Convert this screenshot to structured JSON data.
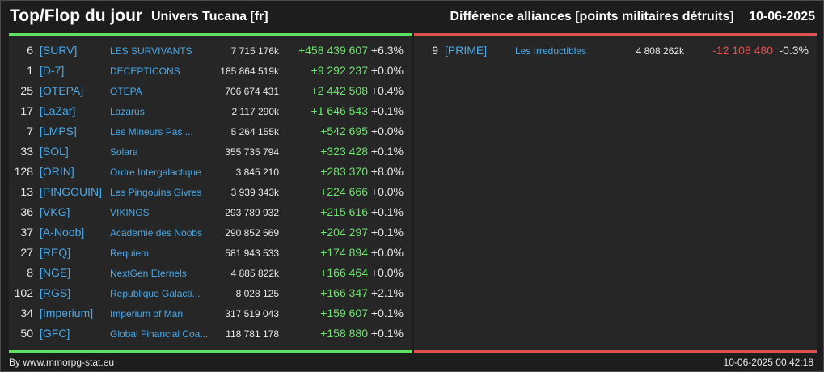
{
  "header": {
    "title": "Top/Flop du jour",
    "subtitle": "Univers Tucana [fr]",
    "right_label": "Différence alliances [points militaires détruits]",
    "date": "10-06-2025"
  },
  "colors": {
    "positive": "#6fe36f",
    "negative": "#e05050",
    "link": "#4aa8e8",
    "top_accent": "#5fe35f",
    "flop_accent": "#e05050"
  },
  "top": [
    {
      "rank": "6",
      "tag": "[SURV]",
      "name": "LES SURVIVANTS",
      "points": "7 715 176k",
      "diff": "+458 439 607",
      "pct": "+6.3%"
    },
    {
      "rank": "1",
      "tag": "[D-7]",
      "name": "DECEPTICONS",
      "points": "185 864 519k",
      "diff": "+9 292 237",
      "pct": "+0.0%"
    },
    {
      "rank": "25",
      "tag": "[OTEPA]",
      "name": "OTEPA",
      "points": "706 674 431",
      "diff": "+2 442 508",
      "pct": "+0.4%"
    },
    {
      "rank": "17",
      "tag": "[LaZar]",
      "name": "Lazarus",
      "points": "2 117 290k",
      "diff": "+1 646 543",
      "pct": "+0.1%"
    },
    {
      "rank": "7",
      "tag": "[LMPS]",
      "name": "Les Mineurs Pas ...",
      "points": "5 264 155k",
      "diff": "+542 695",
      "pct": "+0.0%"
    },
    {
      "rank": "33",
      "tag": "[SOL]",
      "name": "Solara",
      "points": "355 735 794",
      "diff": "+323 428",
      "pct": "+0.1%"
    },
    {
      "rank": "128",
      "tag": "[ORIN]",
      "name": "Ordre Intergalactique",
      "points": "3 845 210",
      "diff": "+283 370",
      "pct": "+8.0%"
    },
    {
      "rank": "13",
      "tag": "[PINGOUIN]",
      "name": "Les Pingouins Givres",
      "points": "3 939 343k",
      "diff": "+224 666",
      "pct": "+0.0%"
    },
    {
      "rank": "36",
      "tag": "[VKG]",
      "name": "VIKINGS",
      "points": "293 789 932",
      "diff": "+215 616",
      "pct": "+0.1%"
    },
    {
      "rank": "37",
      "tag": "[A-Noob]",
      "name": "Academie des Noobs",
      "points": "290 852 569",
      "diff": "+204 297",
      "pct": "+0.1%"
    },
    {
      "rank": "27",
      "tag": "[REQ]",
      "name": "Requiem",
      "points": "581 943 533",
      "diff": "+174 894",
      "pct": "+0.0%"
    },
    {
      "rank": "8",
      "tag": "[NGE]",
      "name": "NextGen Eternels",
      "points": "4 885 822k",
      "diff": "+166 464",
      "pct": "+0.0%"
    },
    {
      "rank": "102",
      "tag": "[RGS]",
      "name": "Republique Galacti...",
      "points": "8 028 125",
      "diff": "+166 347",
      "pct": "+2.1%"
    },
    {
      "rank": "34",
      "tag": "[Imperium]",
      "name": "Imperium of Man",
      "points": "317 519 043",
      "diff": "+159 607",
      "pct": "+0.1%"
    },
    {
      "rank": "50",
      "tag": "[GFC]",
      "name": "Global Financial Coa...",
      "points": "118 781 178",
      "diff": "+158 880",
      "pct": "+0.1%"
    }
  ],
  "flop": [
    {
      "rank": "9",
      "tag": "[PRIME]",
      "name": "Les Irreductibles",
      "points": "4 808 262k",
      "diff": "-12 108 480",
      "pct": "-0.3%"
    }
  ],
  "footer": {
    "source": "By www.mmorpg-stat.eu",
    "timestamp": "10-06-2025 00:42:18"
  }
}
